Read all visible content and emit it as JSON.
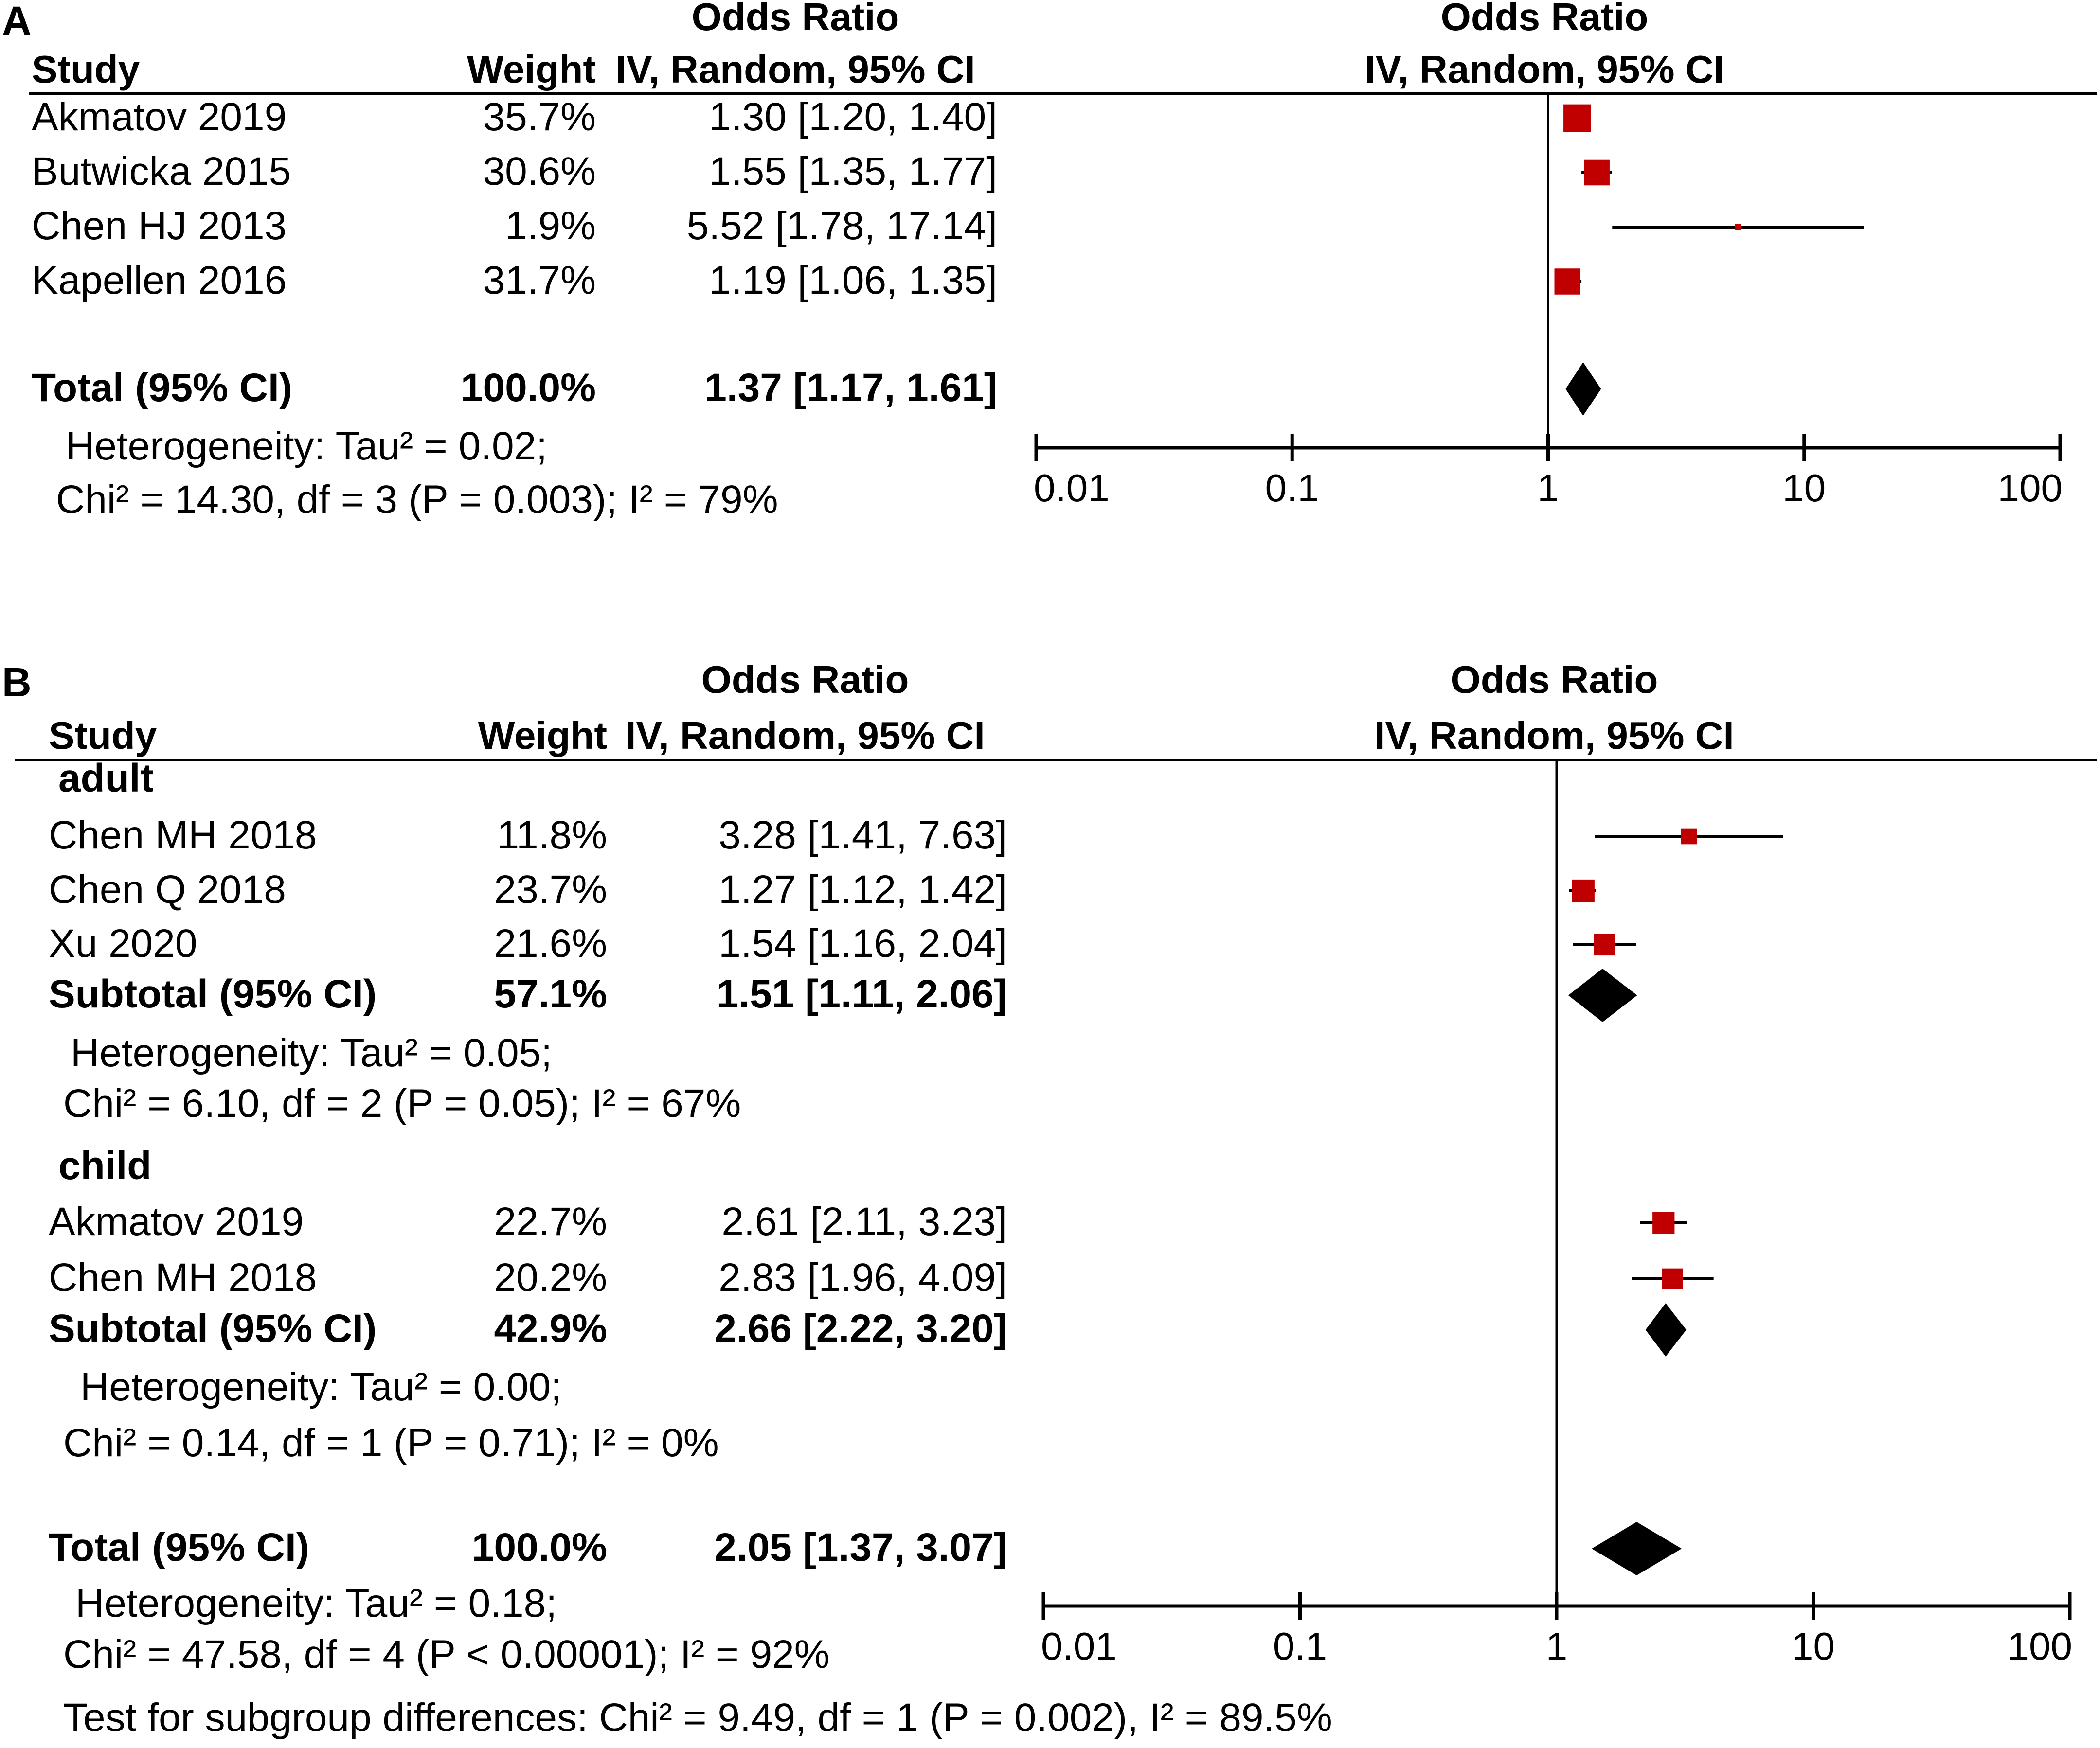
{
  "chart_data": [
    {
      "type": "forest",
      "panel_label": "A",
      "headers": {
        "study": "Study",
        "weight": "Weight",
        "effect_title": "Odds Ratio",
        "effect_method": "IV, Random, 95% CI",
        "plot_title": "Odds Ratio",
        "plot_method": "IV, Random, 95% CI"
      },
      "rows": [
        {
          "kind": "study",
          "label": "Akmatov 2019",
          "weight": "35.7%",
          "text": "1.30 [1.20, 1.40]",
          "or": 1.3,
          "lo": 1.2,
          "hi": 1.4,
          "w": 35.7
        },
        {
          "kind": "study",
          "label": "Butwicka 2015",
          "weight": "30.6%",
          "text": "1.55 [1.35, 1.77]",
          "or": 1.55,
          "lo": 1.35,
          "hi": 1.77,
          "w": 30.6
        },
        {
          "kind": "study",
          "label": "Chen HJ 2013",
          "weight": "1.9%",
          "text": "5.52 [1.78, 17.14]",
          "or": 5.52,
          "lo": 1.78,
          "hi": 17.14,
          "w": 1.9
        },
        {
          "kind": "study",
          "label": "Kapellen 2016",
          "weight": "31.7%",
          "text": "1.19 [1.06, 1.35]",
          "or": 1.19,
          "lo": 1.06,
          "hi": 1.35,
          "w": 31.7
        },
        {
          "kind": "spacer"
        },
        {
          "kind": "total",
          "label": "Total (95% CI)",
          "weight": "100.0%",
          "text": "1.37 [1.17, 1.61]",
          "or": 1.37,
          "lo": 1.17,
          "hi": 1.61
        },
        {
          "kind": "note",
          "label": "Heterogeneity: Tau² = 0.02;"
        },
        {
          "kind": "note",
          "label": "Chi² = 14.30, df = 3 (P = 0.003); I² = 79%"
        }
      ],
      "axis": {
        "scale": "log",
        "range": [
          0.01,
          100
        ],
        "ticks": [
          0.01,
          0.1,
          1,
          10,
          100
        ],
        "tick_labels": [
          "0.01",
          "0.1",
          "1",
          "10",
          "100"
        ],
        "reference": 1
      }
    },
    {
      "type": "forest",
      "panel_label": "B",
      "headers": {
        "study": "Study",
        "weight": "Weight",
        "effect_title": "Odds Ratio",
        "effect_method": "IV, Random, 95% CI",
        "plot_title": "Odds Ratio",
        "plot_method": "IV, Random, 95% CI"
      },
      "rows": [
        {
          "kind": "group",
          "label": "adult"
        },
        {
          "kind": "study",
          "label": "Chen MH 2018",
          "weight": "11.8%",
          "text": "3.28 [1.41, 7.63]",
          "or": 3.28,
          "lo": 1.41,
          "hi": 7.63,
          "w": 11.8
        },
        {
          "kind": "study",
          "label": "Chen Q 2018",
          "weight": "23.7%",
          "text": "1.27 [1.12, 1.42]",
          "or": 1.27,
          "lo": 1.12,
          "hi": 1.42,
          "w": 23.7
        },
        {
          "kind": "study",
          "label": "Xu 2020",
          "weight": "21.6%",
          "text": "1.54 [1.16, 2.04]",
          "or": 1.54,
          "lo": 1.16,
          "hi": 2.04,
          "w": 21.6
        },
        {
          "kind": "total",
          "label": "Subtotal (95% CI)",
          "weight": "57.1%",
          "text": "1.51 [1.11, 2.06]",
          "or": 1.51,
          "lo": 1.11,
          "hi": 2.06
        },
        {
          "kind": "note",
          "label": "Heterogeneity: Tau² = 0.05;"
        },
        {
          "kind": "note",
          "label": "Chi² = 6.10, df = 2 (P = 0.05); I² = 67%"
        },
        {
          "kind": "group",
          "label": "child"
        },
        {
          "kind": "study",
          "label": "Akmatov 2019",
          "weight": "22.7%",
          "text": "2.61 [2.11, 3.23]",
          "or": 2.61,
          "lo": 2.11,
          "hi": 3.23,
          "w": 22.7
        },
        {
          "kind": "study",
          "label": "Chen MH 2018",
          "weight": "20.2%",
          "text": "2.83 [1.96, 4.09]",
          "or": 2.83,
          "lo": 1.96,
          "hi": 4.09,
          "w": 20.2
        },
        {
          "kind": "total",
          "label": "Subtotal (95% CI)",
          "weight": "42.9%",
          "text": "2.66 [2.22, 3.20]",
          "or": 2.66,
          "lo": 2.22,
          "hi": 3.2
        },
        {
          "kind": "note",
          "label": "Heterogeneity: Tau² = 0.00;"
        },
        {
          "kind": "note",
          "label": "Chi² = 0.14, df = 1 (P = 0.71); I² = 0%"
        },
        {
          "kind": "spacer"
        },
        {
          "kind": "total",
          "label": "Total (95% CI)",
          "weight": "100.0%",
          "text": "2.05 [1.37, 3.07]",
          "or": 2.05,
          "lo": 1.37,
          "hi": 3.07
        },
        {
          "kind": "note",
          "label": "Heterogeneity: Tau² = 0.18;"
        },
        {
          "kind": "note",
          "label": "Chi² = 47.58, df = 4 (P < 0.00001); I² = 92%"
        },
        {
          "kind": "note",
          "label": "Test for subgroup differences: Chi² = 9.49, df = 1 (P = 0.002), I² = 89.5%"
        }
      ],
      "axis": {
        "scale": "log",
        "range": [
          0.01,
          100
        ],
        "ticks": [
          0.01,
          0.1,
          1,
          10,
          100
        ],
        "tick_labels": [
          "0.01",
          "0.1",
          "1",
          "10",
          "100"
        ],
        "reference": 1
      }
    }
  ],
  "colors": {
    "marker": "#c00000",
    "line": "#000000",
    "diamond": "#000000",
    "background": "#ffffff"
  }
}
